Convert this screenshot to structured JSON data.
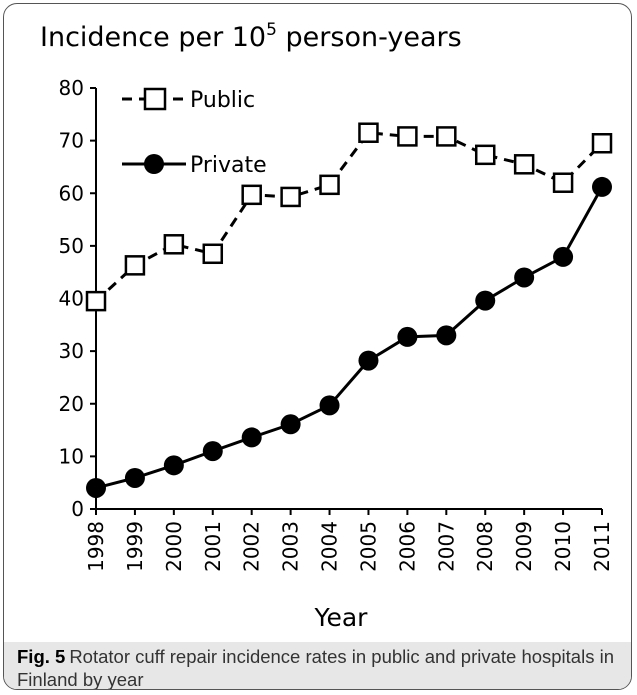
{
  "figure": {
    "title_prefix": "Incidence per 10",
    "title_exponent": "5",
    "title_suffix": " person-years",
    "caption_label": "Fig. 5",
    "caption_text": "Rotator cuff repair incidence rates in public and private hospitals in Finland by year"
  },
  "chart_data": {
    "type": "line",
    "title": "Incidence per 10^5 person-years",
    "xlabel": "Year",
    "ylabel": "",
    "ylim": [
      0,
      80
    ],
    "yticks": [
      0,
      10,
      20,
      30,
      40,
      50,
      60,
      70,
      80
    ],
    "x": [
      "1998",
      "1999",
      "2000",
      "2001",
      "2002",
      "2003",
      "2004",
      "2005",
      "2006",
      "2007",
      "2008",
      "2009",
      "2010",
      "2011"
    ],
    "grid": false,
    "legend_position": "top-left",
    "series": [
      {
        "name": "Public",
        "marker": "open-square",
        "line_style": "dashed",
        "color": "#000000",
        "values": [
          39.5,
          46.3,
          50.3,
          48.5,
          59.7,
          59.3,
          61.6,
          71.5,
          70.8,
          70.8,
          67.3,
          65.5,
          62.0,
          69.5
        ]
      },
      {
        "name": "Private",
        "marker": "filled-circle",
        "line_style": "solid",
        "color": "#000000",
        "values": [
          4.0,
          5.9,
          8.3,
          11.0,
          13.6,
          16.1,
          19.7,
          28.2,
          32.7,
          33.0,
          39.6,
          44.0,
          47.9,
          61.2
        ]
      }
    ]
  }
}
